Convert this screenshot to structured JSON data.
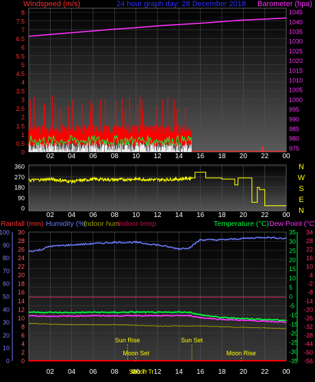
{
  "colors": {
    "windspeed": "#ff3030",
    "gust_fill": "#ff0000",
    "wind_green": "#00ff40",
    "wind_white": "#ffffff",
    "barometer": "#ff30ff",
    "title": "#3030ff",
    "direction": "#ffff00",
    "nwsen": "#ffff00",
    "humidity": "#6b7bff",
    "indoor_hum": "#a0a000",
    "indoor_temp": "#c01050",
    "temperature": "#00ff40",
    "dew_point": "#ff30ff",
    "rain": "#ff0000",
    "rain_axis": "#ff6060",
    "hum_axis": "#8080ff",
    "temp_axis_left": "#00ff40",
    "temp_axis_right": "#ff3070",
    "annotation": "#ffff00",
    "grid": "#666666"
  },
  "header": {
    "windspeed_label": "Windspeed (m/s)",
    "title": "24 hour graph day: 28 December 2018",
    "barometer_label": "Barometer (hpa)"
  },
  "time_axis_labels": [
    "02",
    "04",
    "06",
    "08",
    "10",
    "12",
    "14",
    "16",
    "18",
    "20",
    "22",
    "00"
  ],
  "chart_data": [
    {
      "type": "line",
      "panel": "wind-barometer",
      "series": [
        {
          "name": "Windspeed (m/s)",
          "axis": "left",
          "summary": "gusty 0–1.5 m/s with peaks near 3 m/s between 00:00 and 15:00, near zero afterwards"
        },
        {
          "name": "Barometer (hpa)",
          "axis": "right",
          "x": [
            0,
            2,
            4,
            6,
            8,
            10,
            12,
            14,
            16,
            18,
            20,
            22,
            24
          ],
          "values": [
            1032.5,
            1033.5,
            1034.4,
            1035.3,
            1036.2,
            1037.0,
            1037.9,
            1038.6,
            1039.3,
            1040.1,
            1040.9,
            1041.4,
            1042.0
          ]
        }
      ],
      "left_axis": {
        "ticks": [
          "8",
          "7.5",
          "7",
          "6.5",
          "6",
          "5.5",
          "5",
          "4.5",
          "4",
          "3.5",
          "3",
          "2.5",
          "2",
          "1.5",
          "1",
          "0.5",
          "0"
        ],
        "range": [
          0,
          8
        ]
      },
      "right_axis": {
        "ticks": [
          "1045",
          "1040",
          "1035",
          "1030",
          "1025",
          "1020",
          "1015",
          "1010",
          "1005",
          "1000",
          "995",
          "990",
          "985",
          "980",
          "975"
        ],
        "range": [
          973,
          1047
        ]
      }
    },
    {
      "type": "line",
      "panel": "wind-direction",
      "series": [
        {
          "name": "Wind direction",
          "x": [
            0,
            2,
            4,
            6,
            8,
            10,
            12,
            14,
            15.2,
            15.5,
            16.5,
            18,
            19.2,
            19.5,
            20.5,
            20.8,
            21.0,
            21.3,
            21.5,
            22.0,
            24
          ],
          "values": [
            240,
            250,
            230,
            250,
            245,
            250,
            245,
            250,
            260,
            310,
            260,
            250,
            200,
            260,
            260,
            50,
            50,
            180,
            160,
            20,
            20
          ]
        }
      ],
      "left_axis": {
        "ticks": [
          "360",
          "270",
          "180",
          "90",
          "0"
        ],
        "range": [
          0,
          360
        ]
      },
      "right_labels": [
        "N",
        "W",
        "S",
        "E",
        "N"
      ]
    },
    {
      "type": "line",
      "panel": "temperature-humidity",
      "legend": [
        "Rainfall (mm)",
        "Humidity (%)",
        "Indoor hum",
        "Indoor temp",
        "Temperature (°C)",
        "Dew Point (°C)"
      ],
      "series": [
        {
          "name": "Humidity (%)",
          "axis": "hum",
          "x": [
            0,
            1,
            2,
            4,
            6,
            8,
            10,
            12,
            14,
            15,
            16,
            18,
            20,
            22,
            24
          ],
          "values": [
            85,
            86,
            89,
            90,
            91,
            92,
            92,
            90,
            87,
            88,
            94,
            94,
            95,
            96,
            95
          ]
        },
        {
          "name": "Indoor hum",
          "axis": "hum",
          "x": [
            0,
            4,
            8,
            12,
            16,
            20,
            24
          ],
          "values": [
            29,
            28,
            28,
            27,
            27,
            26,
            25
          ]
        },
        {
          "name": "Temperature (°C)",
          "axis": "temp",
          "x": [
            0,
            2,
            4,
            6,
            8,
            10,
            12,
            14,
            15,
            16,
            18,
            20,
            22,
            24
          ],
          "values": [
            -8.5,
            -8.7,
            -8.8,
            -8.6,
            -8.7,
            -8.5,
            -8.7,
            -8.5,
            -8.6,
            -10,
            -11.5,
            -12,
            -12.5,
            -13
          ]
        },
        {
          "name": "Dew Point (°C)",
          "axis": "temp",
          "x": [
            0,
            2,
            4,
            6,
            8,
            10,
            12,
            14,
            15,
            16,
            18,
            20,
            22,
            24
          ],
          "values": [
            -10.5,
            -10.8,
            -10.7,
            -10.5,
            -10.6,
            -10.4,
            -10.6,
            -10.4,
            -10.5,
            -11.5,
            -12.5,
            -13,
            -13.5,
            -14
          ]
        },
        {
          "name": "Indoor temp",
          "axis": "temp",
          "x": [
            0,
            24
          ],
          "values": [
            -0.5,
            -0.5
          ]
        },
        {
          "name": "Rainfall (mm)",
          "axis": "rain",
          "x": [
            0,
            24
          ],
          "values": [
            0,
            0
          ]
        }
      ],
      "left_axis_hum": {
        "ticks": [
          "100",
          "90",
          "80",
          "70",
          "60",
          "50",
          "40",
          "30",
          "20",
          "10",
          "0"
        ],
        "range": [
          0,
          100
        ]
      },
      "left_axis_rain": {
        "ticks": [
          "30",
          "28",
          "26",
          "24",
          "22",
          "20",
          "18",
          "16",
          "14",
          "12",
          "10",
          "8",
          "6",
          "4",
          "2",
          "0"
        ],
        "range": [
          0,
          30
        ]
      },
      "right_axis_temp_a": {
        "ticks": [
          "35",
          "30",
          "25",
          "20",
          "15",
          "10",
          "5",
          "0",
          "-5",
          "-10",
          "-15",
          "-20",
          "-25",
          "-30",
          "-35"
        ],
        "range": [
          -35,
          35
        ]
      },
      "right_axis_temp_b": {
        "ticks": [
          "34",
          "28",
          "22",
          "16",
          "10",
          "4",
          "-2",
          "-8",
          "-14",
          "-20",
          "-26",
          "-32",
          "-38",
          "-44",
          "-50",
          "-56"
        ],
        "range": [
          -56,
          34
        ]
      },
      "annotations": [
        {
          "text": "Sun Rise",
          "x": 9.2
        },
        {
          "text": "Sun Set",
          "x": 15.2
        },
        {
          "text": "Moon Set",
          "x": 10.0
        },
        {
          "text": "Moon Rise",
          "x": 19.8
        },
        {
          "text": "Sun Tr",
          "x": 10.2
        },
        {
          "text": "Moon Tr",
          "x": 10.6
        }
      ]
    }
  ]
}
